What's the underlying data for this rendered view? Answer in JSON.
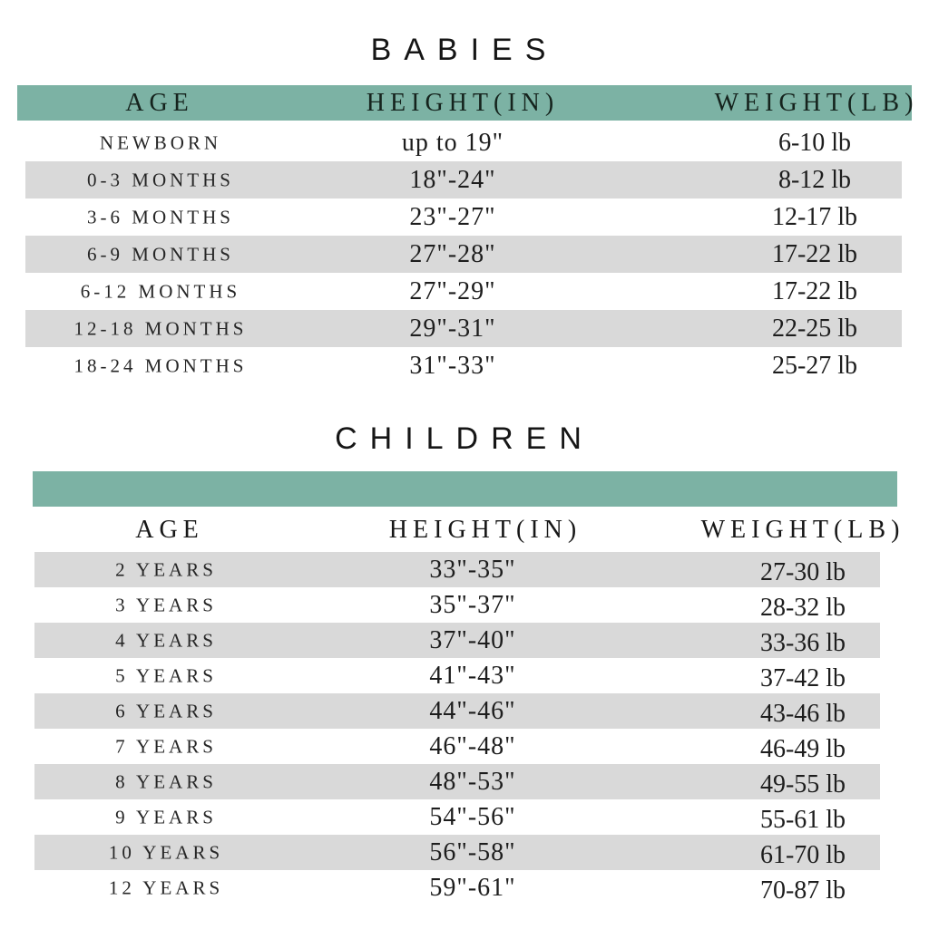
{
  "colors": {
    "header_bar_green": "#7cb2a4",
    "row_stripe_gray": "#d9d9d9",
    "text_dark": "#1d1d1d",
    "background": "#ffffff"
  },
  "chart_data": [
    {
      "type": "table",
      "title": "BABIES",
      "columns": [
        "AGE",
        "HEIGHT(IN)",
        "WEIGHT(LB)"
      ],
      "rows": [
        [
          "NEWBORN",
          "up to 19\"",
          "6-10 lb"
        ],
        [
          "0-3 MONTHS",
          "18\"-24\"",
          "8-12 lb"
        ],
        [
          "3-6 MONTHS",
          "23\"-27\"",
          "12-17 lb"
        ],
        [
          "6-9 MONTHS",
          "27\"-28\"",
          "17-22 lb"
        ],
        [
          "6-12 MONTHS",
          "27\"-29\"",
          "17-22 lb"
        ],
        [
          "12-18 MONTHS",
          "29\"-31\"",
          "22-25 lb"
        ],
        [
          "18-24 MONTHS",
          "31\"-33\"",
          "25-27 lb"
        ]
      ]
    },
    {
      "type": "table",
      "title": "CHILDREN",
      "columns": [
        "AGE",
        "HEIGHT(IN)",
        "WEIGHT(LB)"
      ],
      "rows": [
        [
          "2 YEARS",
          "33\"-35\"",
          "27-30 lb"
        ],
        [
          "3 YEARS",
          "35\"-37\"",
          "28-32 lb"
        ],
        [
          "4 YEARS",
          "37\"-40\"",
          "33-36 lb"
        ],
        [
          "5 YEARS",
          "41\"-43\"",
          "37-42 lb"
        ],
        [
          "6 YEARS",
          "44\"-46\"",
          "43-46 lb"
        ],
        [
          "7 YEARS",
          "46\"-48\"",
          "46-49 lb"
        ],
        [
          "8 YEARS",
          "48\"-53\"",
          "49-55 lb"
        ],
        [
          "9 YEARS",
          "54\"-56\"",
          "55-61 lb"
        ],
        [
          "10 YEARS",
          "56\"-58\"",
          "61-70 lb"
        ],
        [
          "12 YEARS",
          "59\"-61\"",
          "70-87 lb"
        ]
      ]
    }
  ]
}
